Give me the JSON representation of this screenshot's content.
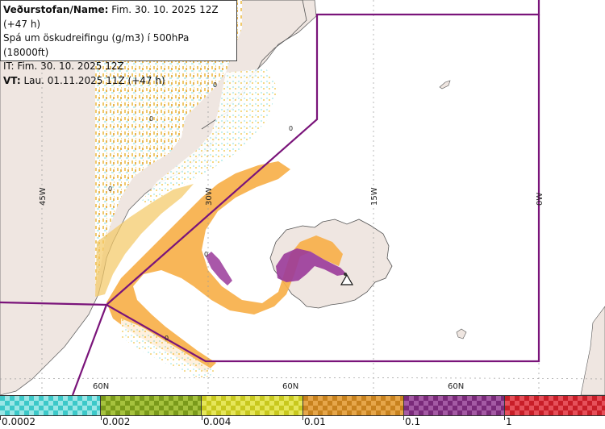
{
  "header": {
    "line1_label": "Veðurstofan/Name:",
    "line1_value": " Fim. 30. 10. 2025 12Z (+47 h)",
    "line2": "Spá um öskudreifingu (g/m3) í 500hPa (18000ft)",
    "line3": "IT: Fim. 30. 10. 2025 12Z",
    "line4_label": "VT:",
    "line4_value": " Lau. 01.11.2025 11Z (+47 h)"
  },
  "grid": {
    "longitude_labels": [
      "45W",
      "30W",
      "15W",
      "0W"
    ],
    "latitude_labels": [
      "60N",
      "60N",
      "60N"
    ]
  },
  "contour_labels": [
    "0",
    "0",
    "0",
    "0",
    "0",
    "0"
  ],
  "legend": {
    "categories": [
      {
        "color": "#3cc8c8",
        "checker": "#9be6e6"
      },
      {
        "color": "#7a9a1a",
        "checker": "#a6c23e"
      },
      {
        "color": "#c8c81e",
        "checker": "#e6e65a"
      },
      {
        "color": "#c8821e",
        "checker": "#e6a64a"
      },
      {
        "color": "#7a2a7a",
        "checker": "#a45aa4"
      },
      {
        "color": "#c81e28",
        "checker": "#e6505a"
      }
    ],
    "labels": [
      "0.0002",
      "0.002",
      "0.004",
      "0.01",
      "0.1",
      "1"
    ]
  },
  "colors": {
    "land": "#efe6e1",
    "ocean": "#ffffff",
    "boundary": "#7a147a",
    "ash_low": "#f3c863",
    "ash_mid": "#f7b04a",
    "ash_high": "#9a3a9a",
    "trace": "#b8ecec"
  }
}
